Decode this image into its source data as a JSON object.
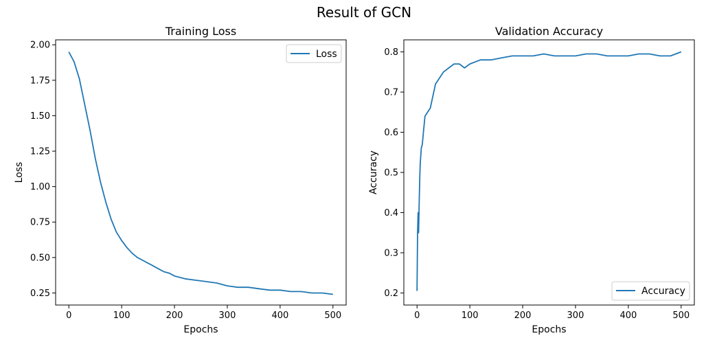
{
  "figure_title": "Result of GCN",
  "chart_data": [
    {
      "type": "line",
      "title": "Training Loss",
      "xlabel": "Epochs",
      "ylabel": "Loss",
      "xlim": [
        -25,
        525
      ],
      "ylim": [
        0.165,
        2.035
      ],
      "xticks": [
        0,
        100,
        200,
        300,
        400,
        500
      ],
      "yticks": [
        0.25,
        0.5,
        0.75,
        1.0,
        1.25,
        1.5,
        1.75,
        2.0
      ],
      "legend_position": "upper-right",
      "grid": false,
      "color": "#1f77b4",
      "series": [
        {
          "name": "Loss",
          "x": [
            0,
            10,
            20,
            30,
            40,
            50,
            60,
            70,
            80,
            90,
            100,
            110,
            120,
            130,
            140,
            150,
            160,
            170,
            180,
            190,
            200,
            220,
            240,
            260,
            280,
            300,
            320,
            340,
            360,
            380,
            400,
            420,
            440,
            460,
            480,
            500
          ],
          "values": [
            1.95,
            1.88,
            1.76,
            1.58,
            1.4,
            1.2,
            1.03,
            0.89,
            0.77,
            0.68,
            0.62,
            0.57,
            0.53,
            0.5,
            0.48,
            0.46,
            0.44,
            0.42,
            0.4,
            0.39,
            0.37,
            0.35,
            0.34,
            0.33,
            0.32,
            0.3,
            0.29,
            0.29,
            0.28,
            0.27,
            0.27,
            0.26,
            0.26,
            0.25,
            0.25,
            0.24
          ]
        }
      ]
    },
    {
      "type": "line",
      "title": "Validation Accuracy",
      "xlabel": "Epochs",
      "ylabel": "Accuracy",
      "xlim": [
        -25,
        525
      ],
      "ylim": [
        0.17,
        0.83
      ],
      "xticks": [
        0,
        100,
        200,
        300,
        400,
        500
      ],
      "yticks": [
        0.2,
        0.3,
        0.4,
        0.5,
        0.6,
        0.7,
        0.8
      ],
      "legend_position": "lower-right",
      "grid": false,
      "color": "#1f77b4",
      "series": [
        {
          "name": "Accuracy",
          "x": [
            0,
            1,
            2,
            3,
            4,
            5,
            6,
            8,
            10,
            12,
            15,
            20,
            25,
            30,
            35,
            40,
            50,
            60,
            70,
            80,
            90,
            100,
            120,
            140,
            160,
            180,
            200,
            220,
            240,
            260,
            280,
            300,
            320,
            340,
            360,
            380,
            400,
            420,
            440,
            460,
            480,
            500
          ],
          "values": [
            0.205,
            0.35,
            0.4,
            0.35,
            0.42,
            0.48,
            0.52,
            0.56,
            0.57,
            0.6,
            0.64,
            0.65,
            0.66,
            0.69,
            0.72,
            0.73,
            0.75,
            0.76,
            0.77,
            0.77,
            0.76,
            0.77,
            0.78,
            0.78,
            0.785,
            0.79,
            0.79,
            0.79,
            0.795,
            0.79,
            0.79,
            0.79,
            0.795,
            0.795,
            0.79,
            0.79,
            0.79,
            0.795,
            0.795,
            0.79,
            0.79,
            0.8
          ]
        }
      ]
    }
  ]
}
